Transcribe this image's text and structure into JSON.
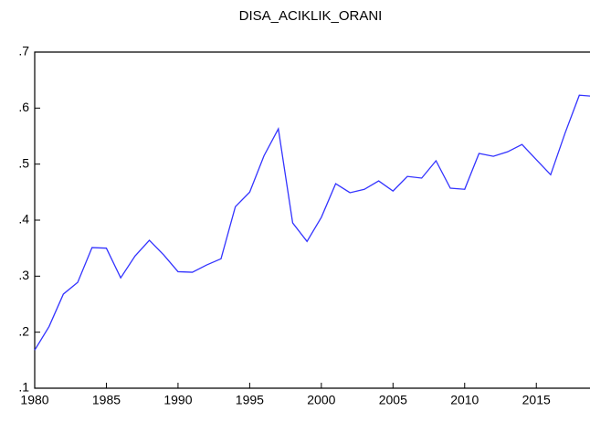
{
  "chart_data": {
    "type": "line",
    "title": "DISA_ACIKLIK_ORANI",
    "x": [
      1980,
      1981,
      1982,
      1983,
      1984,
      1985,
      1986,
      1987,
      1988,
      1989,
      1990,
      1991,
      1992,
      1993,
      1994,
      1995,
      1996,
      1997,
      1998,
      1999,
      2000,
      2001,
      2002,
      2003,
      2004,
      2005,
      2006,
      2007,
      2008,
      2009,
      2010,
      2011,
      2012,
      2013,
      2014,
      2015,
      2016,
      2017,
      2018,
      2019
    ],
    "series": [
      {
        "name": "DISA_ACIKLIK_ORANI",
        "color": "#3333ff",
        "values": [
          0.168,
          0.21,
          0.268,
          0.289,
          0.351,
          0.35,
          0.297,
          0.336,
          0.364,
          0.338,
          0.308,
          0.307,
          0.32,
          0.331,
          0.424,
          0.45,
          0.515,
          0.563,
          0.395,
          0.362,
          0.405,
          0.465,
          0.449,
          0.455,
          0.47,
          0.452,
          0.478,
          0.475,
          0.506,
          0.457,
          0.455,
          0.519,
          0.514,
          0.522,
          0.535,
          0.508,
          0.481,
          0.555,
          0.623,
          0.621
        ]
      }
    ],
    "xlim": [
      1980,
      2019
    ],
    "xticks": [
      1980,
      1985,
      1990,
      1995,
      2000,
      2005,
      2010,
      2015
    ],
    "ylim": [
      0.1,
      0.7
    ],
    "yticks": [
      {
        "value": 0.1,
        "label": ".1"
      },
      {
        "value": 0.2,
        "label": ".2"
      },
      {
        "value": 0.3,
        "label": ".3"
      },
      {
        "value": 0.4,
        "label": ".4"
      },
      {
        "value": 0.5,
        "label": ".5"
      },
      {
        "value": 0.6,
        "label": ".6"
      },
      {
        "value": 0.7,
        "label": ".7"
      }
    ],
    "grid": false
  }
}
